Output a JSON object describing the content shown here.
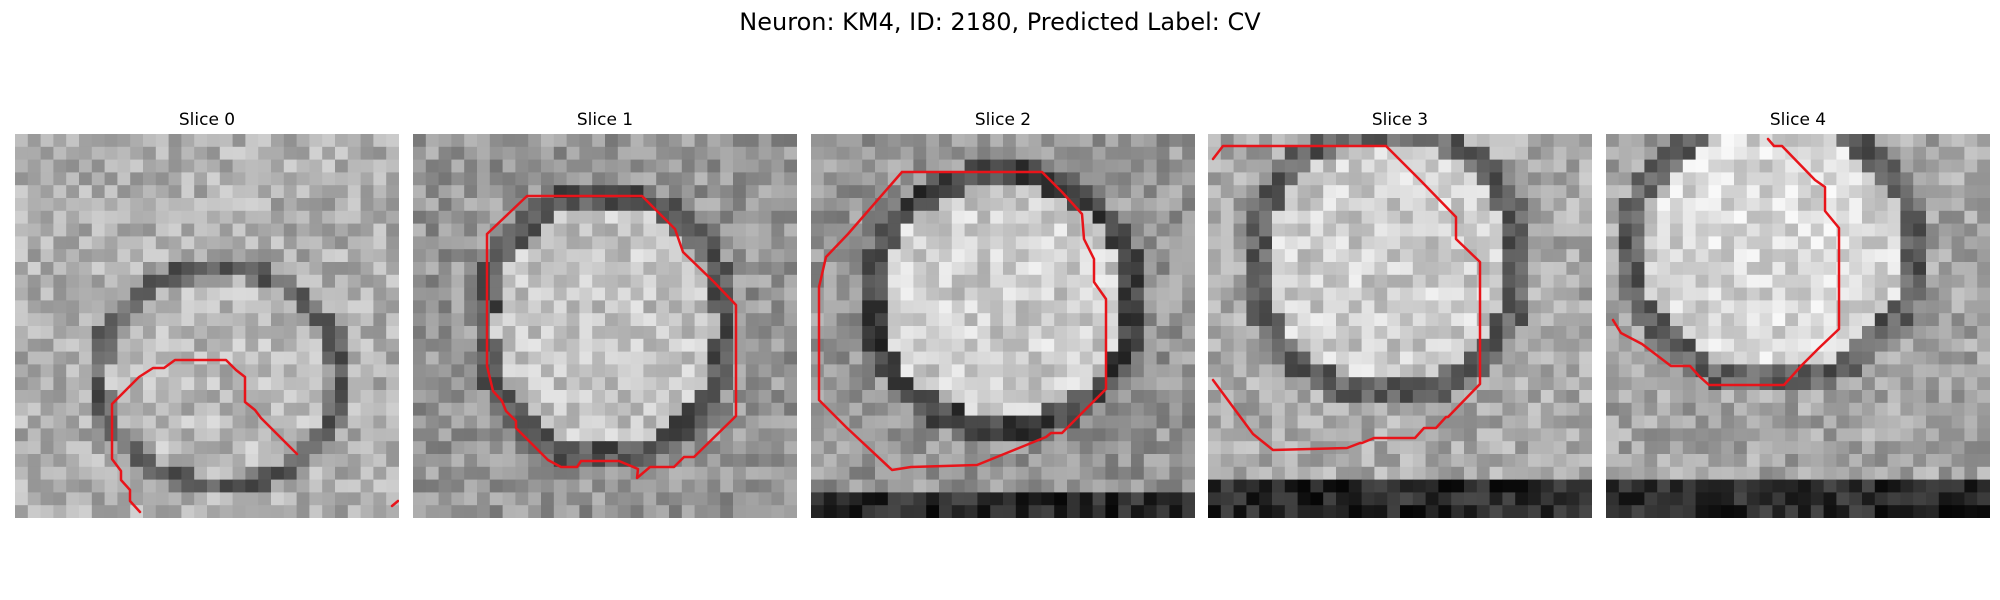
{
  "figure": {
    "title": "Neuron: KM4, ID: 2180, Predicted Label: CV"
  },
  "panels": [
    {
      "title": "Slice 0",
      "mask_color": "#e8141a"
    },
    {
      "title": "Slice 1",
      "mask_color": "#e8141a"
    },
    {
      "title": "Slice 2",
      "mask_color": "#e8141a"
    },
    {
      "title": "Slice 3",
      "mask_color": "#e8141a"
    },
    {
      "title": "Slice 4",
      "mask_color": "#e8141a"
    }
  ]
}
